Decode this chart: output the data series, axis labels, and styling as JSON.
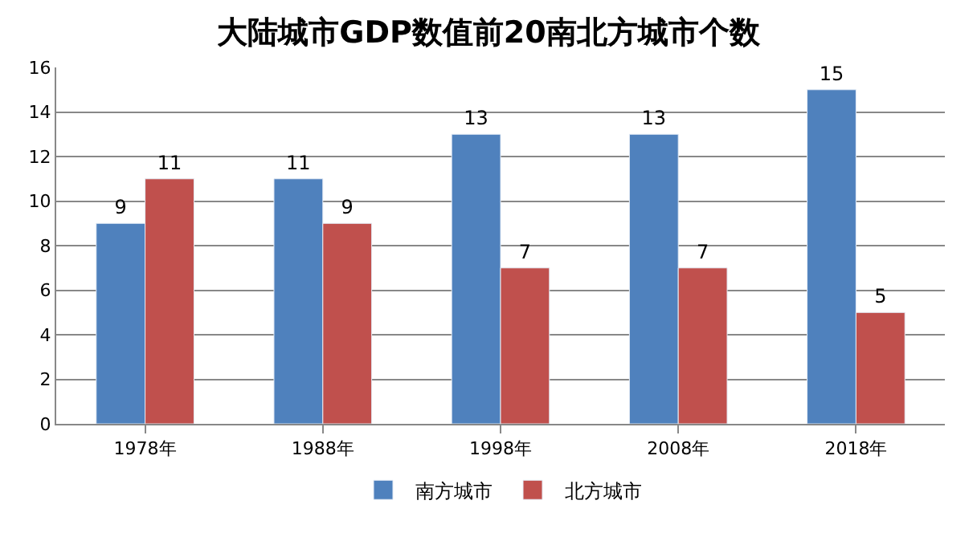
{
  "chart_data": {
    "type": "bar",
    "title": "大陆城市GDP数值前20南北方城市个数",
    "categories": [
      "1978年",
      "1988年",
      "1998年",
      "2008年",
      "2018年"
    ],
    "series": [
      {
        "name": "南方城市",
        "color": "#4f81bd",
        "values": [
          9,
          11,
          13,
          13,
          15
        ]
      },
      {
        "name": "北方城市",
        "color": "#c0504d",
        "values": [
          11,
          9,
          7,
          7,
          5
        ]
      }
    ],
    "ylim": [
      0,
      16
    ],
    "yticks": [
      0,
      2,
      4,
      6,
      8,
      10,
      12,
      14,
      16
    ],
    "grid": "y",
    "legend": "bottom",
    "data_labels": true
  }
}
